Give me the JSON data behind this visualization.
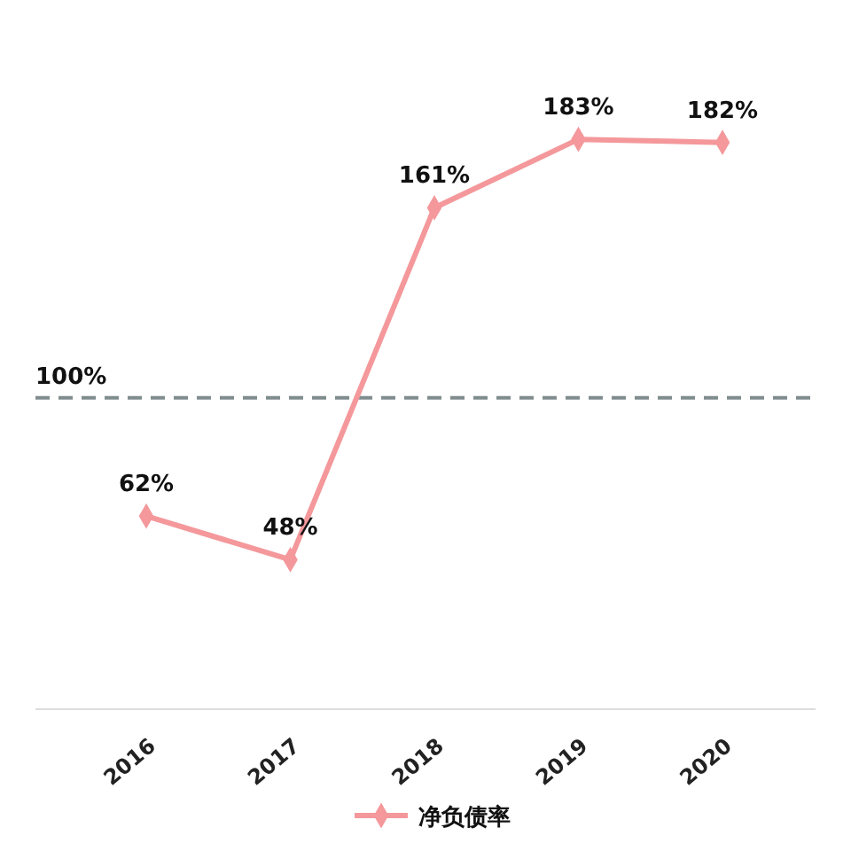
{
  "chart_data": {
    "type": "line",
    "categories": [
      "2016",
      "2017",
      "2018",
      "2019",
      "2020"
    ],
    "series": [
      {
        "name": "净负债率",
        "color": "#f4989b",
        "values": [
          62,
          48,
          161,
          183,
          182
        ],
        "value_labels": [
          "62%",
          "48%",
          "161%",
          "183%",
          "182%"
        ]
      }
    ],
    "data_labels": true,
    "marker": "diamond",
    "legend": "bottom",
    "grid": false,
    "ref_lines": [
      {
        "axis": "y",
        "value": 100,
        "label": "100%",
        "color": "#7f8c8d",
        "line_style": "dashed"
      }
    ]
  }
}
